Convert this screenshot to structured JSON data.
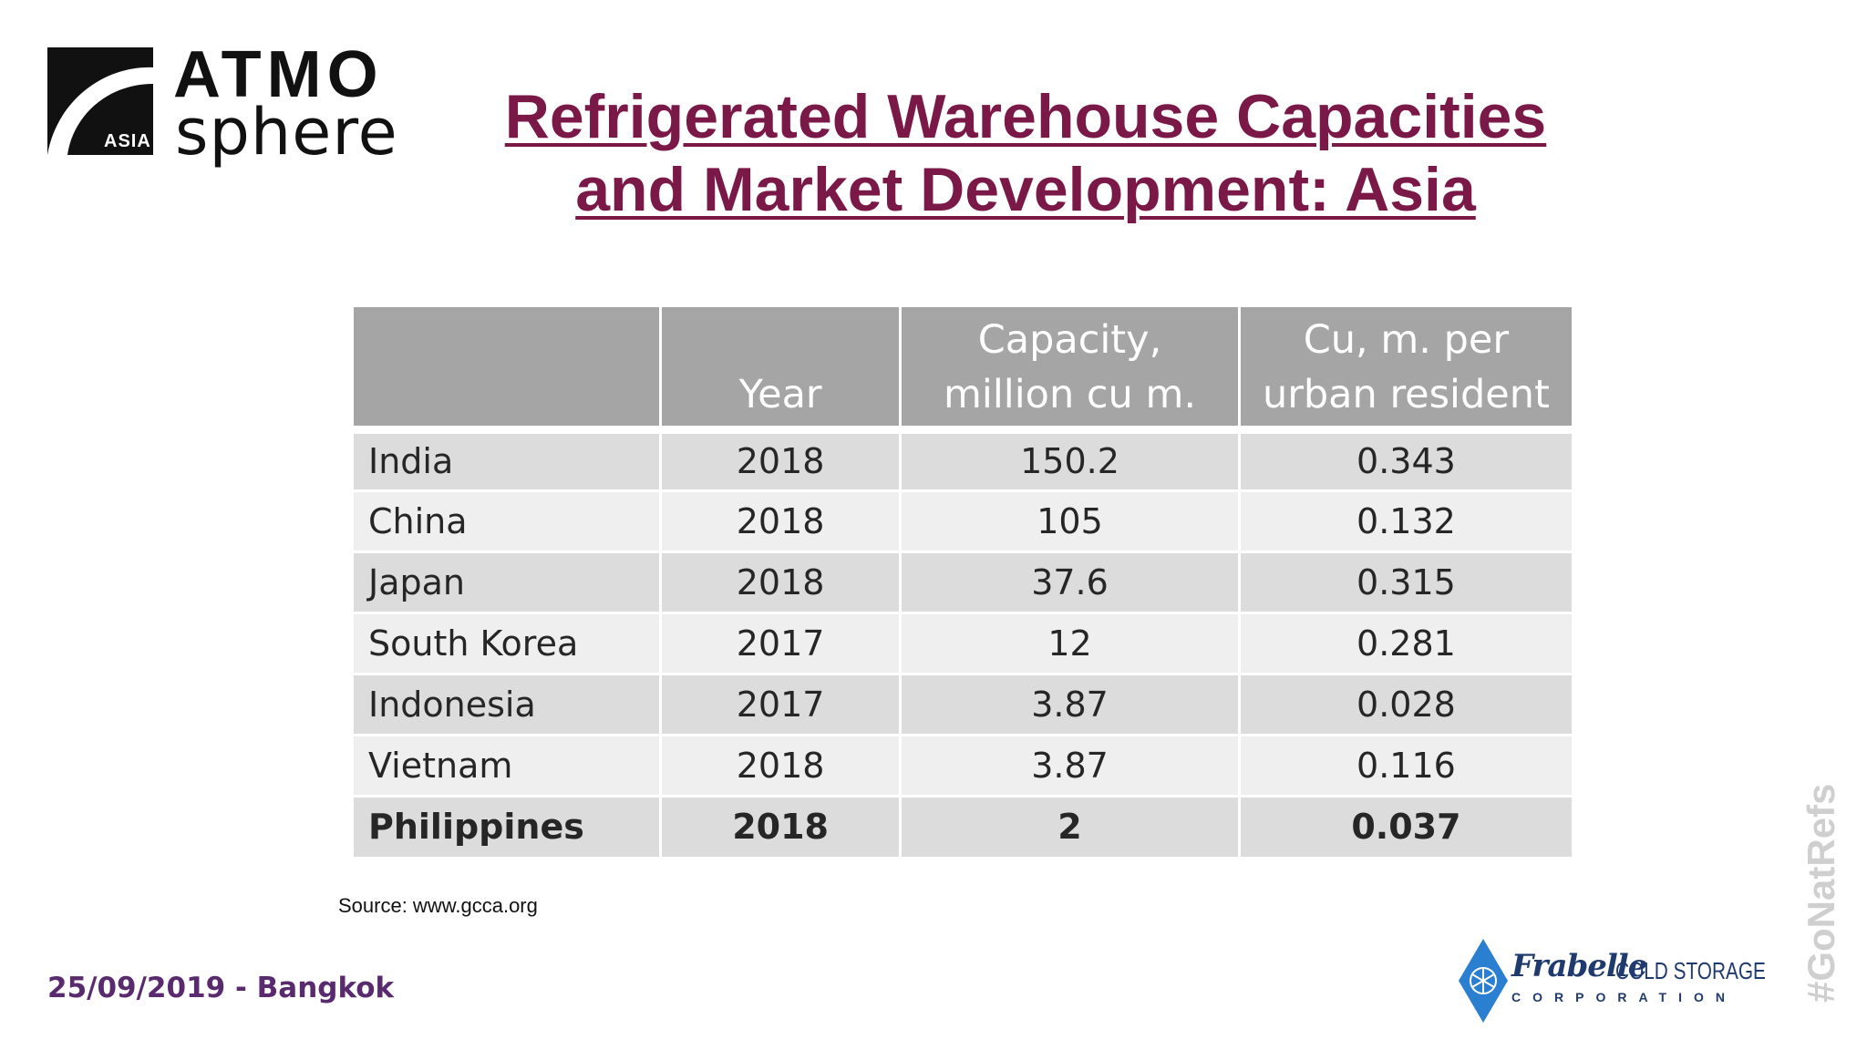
{
  "logo": {
    "line1": "ATMO",
    "line2": "sphere",
    "badge": "ASIA"
  },
  "title": {
    "line1": "Refrigerated Warehouse Capacities",
    "line2": "and Market Development: Asia"
  },
  "table": {
    "headers": [
      "",
      "Year",
      "Capacity,\nmillion cu m.",
      "Cu, m. per\nurban resident"
    ],
    "rows": [
      [
        "India",
        "2018",
        "150.2",
        "0.343"
      ],
      [
        "China",
        "2018",
        "105",
        "0.132"
      ],
      [
        "Japan",
        "2018",
        "37.6",
        "0.315"
      ],
      [
        "South Korea",
        "2017",
        "12",
        "0.281"
      ],
      [
        "Indonesia",
        "2017",
        "3.87",
        "0.028"
      ],
      [
        "Vietnam",
        "2018",
        "3.87",
        "0.116"
      ],
      [
        "Philippines",
        "2018",
        "2",
        "0.037"
      ]
    ]
  },
  "source": "Source: www.gcca.org",
  "footer": {
    "date_location": "25/09/2019 - Bangkok"
  },
  "sponsor": {
    "name": "Frabelle",
    "tagline": "COLD STORAGE",
    "sub": "CORPORATION"
  },
  "hashtag": "#GoNatRefs",
  "colors": {
    "title": "#7a1948",
    "header_bg": "#a5a5a5",
    "row_dark": "#dcdcdc",
    "row_light": "#efefef",
    "footer": "#5a2a6e",
    "sponsor": "#1f3a6e"
  },
  "icons": {
    "logo_mark": "atmo-swoosh-logo",
    "sponsor_mark": "snowflake-diamond-logo"
  }
}
